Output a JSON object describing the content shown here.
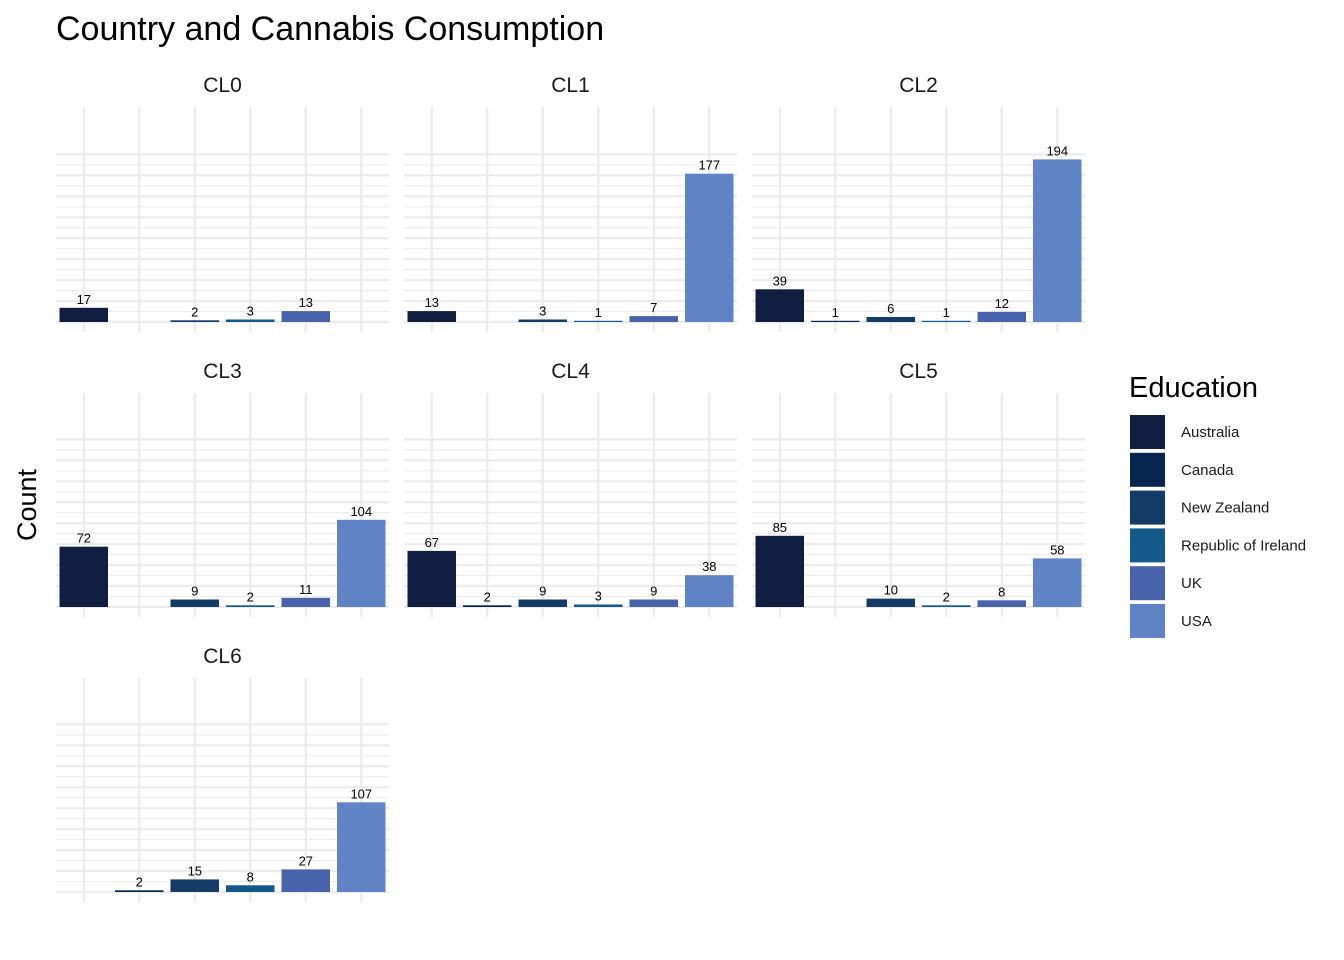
{
  "chart_data": {
    "type": "bar",
    "title": "Country and Cannabis Consumption",
    "ylabel": "Count",
    "xlabel": "",
    "legend": {
      "title": "Education",
      "placement": "right"
    },
    "categories": [
      "Australia",
      "Canada",
      "New Zealand",
      "Republic of Ireland",
      "UK",
      "USA"
    ],
    "colors": [
      "#101e42",
      "#06254f",
      "#143c67",
      "#13598a",
      "#4862ac",
      "#5f83c4"
    ],
    "grid": true,
    "ylim": [
      0,
      200
    ],
    "facets": [
      {
        "name": "CL0",
        "values": [
          17,
          null,
          2,
          3,
          13,
          null
        ]
      },
      {
        "name": "CL1",
        "values": [
          13,
          null,
          3,
          1,
          7,
          177
        ]
      },
      {
        "name": "CL2",
        "values": [
          39,
          1,
          6,
          1,
          12,
          194
        ]
      },
      {
        "name": "CL3",
        "values": [
          72,
          null,
          9,
          2,
          11,
          104
        ]
      },
      {
        "name": "CL4",
        "values": [
          67,
          2,
          9,
          3,
          9,
          38
        ]
      },
      {
        "name": "CL5",
        "values": [
          85,
          null,
          10,
          2,
          8,
          58
        ]
      },
      {
        "name": "CL6",
        "values": [
          null,
          2,
          15,
          8,
          27,
          107
        ]
      }
    ]
  }
}
